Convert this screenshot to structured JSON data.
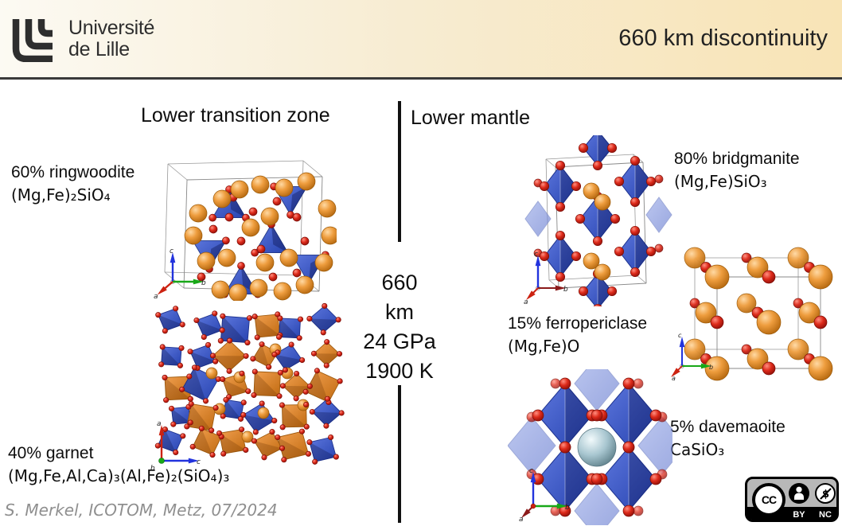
{
  "header": {
    "logo_line1": "Université",
    "logo_line2": "de Lille",
    "title": "660 km discontinuity"
  },
  "columns": {
    "left_header": "Lower transition zone",
    "right_header": "Lower mantle"
  },
  "boundary": {
    "depth_value": "660",
    "depth_unit": "km",
    "pressure": "24 GPa",
    "temperature": "1900 K"
  },
  "minerals": {
    "ringwoodite": {
      "percent_name": "60% ringwoodite",
      "formula": "(Mg,Fe)₂SiO₄"
    },
    "garnet": {
      "percent_name": "40% garnet",
      "formula": "(Mg,Fe,Al,Ca)₃(Al,Fe)₂(SiO₄)₃"
    },
    "bridgmanite": {
      "percent_name": "80% bridgmanite",
      "formula": "(Mg,Fe)SiO₃"
    },
    "ferropericlase": {
      "percent_name": "15% ferropericlase",
      "formula": "(Mg,Fe)O"
    },
    "davemaoite": {
      "percent_name": "5% davemaoite",
      "formula": "CaSiO₃"
    }
  },
  "axis_labels": {
    "a": "a",
    "b": "b",
    "c": "c"
  },
  "footer": {
    "attribution": "S. Merkel, ICOTOM, Metz, 07/2024"
  },
  "license": {
    "cc": "CC",
    "by": "BY",
    "nc": "NC"
  },
  "colors": {
    "header_tan": "#f8e4b6",
    "polyhedra_blue": "#3a56c8",
    "sphere_orange": "#e08a30",
    "sphere_red": "#d92818",
    "sphere_steel": "#8fb0bd",
    "divider_black": "#111111",
    "attribution_gray": "#8f8f8f"
  }
}
